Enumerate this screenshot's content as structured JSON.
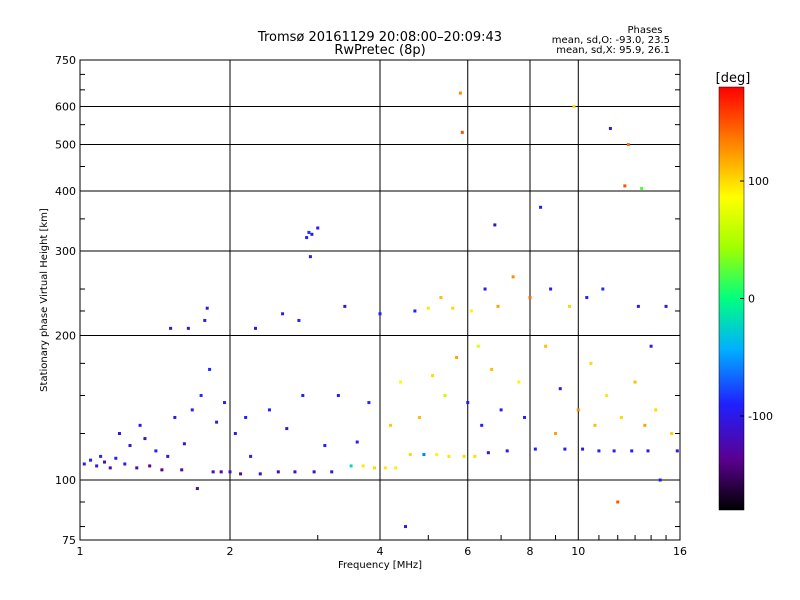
{
  "chart_data": {
    "type": "scatter",
    "title": "Tromsø 20161129 20:08:00–20:09:43",
    "subtitle": "RwPretec (8p)",
    "xlabel": "Frequency [MHz]",
    "ylabel": "Stationary phase Virtual Height [km]",
    "x_scale": "log",
    "y_scale": "log",
    "xlim": [
      1,
      16
    ],
    "ylim": [
      75,
      750
    ],
    "x_ticks": [
      1,
      2,
      4,
      6,
      8,
      10,
      16
    ],
    "x_tick_labels": [
      "1",
      "2",
      "4",
      "6",
      "8",
      "10",
      "16"
    ],
    "y_ticks": [
      75,
      100,
      200,
      300,
      400,
      500,
      600,
      750
    ],
    "y_tick_labels": [
      "75",
      "100",
      "200",
      "300",
      "400",
      "500",
      "600",
      "750"
    ],
    "grid": true,
    "stats": {
      "heading": "Phases",
      "line_o": "mean, sd,O:  -93.0, 23.5",
      "line_x": "mean, sd,X:  95.9, 26.1"
    },
    "colorbar": {
      "label": "[deg]",
      "range": [
        -180,
        180
      ],
      "ticks": [
        100,
        0,
        -100
      ],
      "tick_labels": [
        "100",
        "0",
        "-100"
      ],
      "colormap": "rainbow"
    },
    "series": [
      {
        "color_variable": "phase_deg",
        "points": [
          {
            "x": 1.02,
            "y": 108,
            "c": -95
          },
          {
            "x": 1.05,
            "y": 110,
            "c": -90
          },
          {
            "x": 1.08,
            "y": 107,
            "c": -100
          },
          {
            "x": 1.1,
            "y": 112,
            "c": -88
          },
          {
            "x": 1.12,
            "y": 109,
            "c": -120
          },
          {
            "x": 1.15,
            "y": 106,
            "c": -130
          },
          {
            "x": 1.18,
            "y": 111,
            "c": -92
          },
          {
            "x": 1.2,
            "y": 125,
            "c": -110
          },
          {
            "x": 1.23,
            "y": 108,
            "c": -95
          },
          {
            "x": 1.26,
            "y": 118,
            "c": -105
          },
          {
            "x": 1.3,
            "y": 106,
            "c": -125
          },
          {
            "x": 1.32,
            "y": 130,
            "c": -100
          },
          {
            "x": 1.35,
            "y": 122,
            "c": -115
          },
          {
            "x": 1.38,
            "y": 107,
            "c": -135
          },
          {
            "x": 1.42,
            "y": 115,
            "c": -90
          },
          {
            "x": 1.46,
            "y": 105,
            "c": -140
          },
          {
            "x": 1.5,
            "y": 112,
            "c": -100
          },
          {
            "x": 1.52,
            "y": 207,
            "c": -110
          },
          {
            "x": 1.55,
            "y": 135,
            "c": -95
          },
          {
            "x": 1.6,
            "y": 105,
            "c": -130
          },
          {
            "x": 1.62,
            "y": 119,
            "c": -105
          },
          {
            "x": 1.65,
            "y": 207,
            "c": -100
          },
          {
            "x": 1.68,
            "y": 140,
            "c": -90
          },
          {
            "x": 1.72,
            "y": 96,
            "c": -120
          },
          {
            "x": 1.75,
            "y": 150,
            "c": -85
          },
          {
            "x": 1.78,
            "y": 215,
            "c": -95
          },
          {
            "x": 1.8,
            "y": 228,
            "c": -100
          },
          {
            "x": 1.82,
            "y": 170,
            "c": -88
          },
          {
            "x": 1.85,
            "y": 104,
            "c": -125
          },
          {
            "x": 1.88,
            "y": 132,
            "c": -95
          },
          {
            "x": 1.92,
            "y": 104,
            "c": -135
          },
          {
            "x": 1.95,
            "y": 145,
            "c": -90
          },
          {
            "x": 2.0,
            "y": 104,
            "c": -120
          },
          {
            "x": 2.05,
            "y": 125,
            "c": -100
          },
          {
            "x": 2.1,
            "y": 103,
            "c": -130
          },
          {
            "x": 2.15,
            "y": 135,
            "c": -90
          },
          {
            "x": 2.2,
            "y": 112,
            "c": -95
          },
          {
            "x": 2.25,
            "y": 207,
            "c": -100
          },
          {
            "x": 2.3,
            "y": 103,
            "c": -125
          },
          {
            "x": 2.4,
            "y": 140,
            "c": -92
          },
          {
            "x": 2.5,
            "y": 104,
            "c": -120
          },
          {
            "x": 2.55,
            "y": 222,
            "c": -95
          },
          {
            "x": 2.6,
            "y": 128,
            "c": -100
          },
          {
            "x": 2.7,
            "y": 104,
            "c": -118
          },
          {
            "x": 2.75,
            "y": 215,
            "c": -90
          },
          {
            "x": 2.8,
            "y": 150,
            "c": -95
          },
          {
            "x": 2.85,
            "y": 320,
            "c": -90
          },
          {
            "x": 2.88,
            "y": 328,
            "c": -85
          },
          {
            "x": 2.9,
            "y": 292,
            "c": -95
          },
          {
            "x": 2.92,
            "y": 325,
            "c": -100
          },
          {
            "x": 2.95,
            "y": 104,
            "c": -115
          },
          {
            "x": 3.0,
            "y": 335,
            "c": -90
          },
          {
            "x": 3.1,
            "y": 118,
            "c": -92
          },
          {
            "x": 3.2,
            "y": 104,
            "c": -110
          },
          {
            "x": 3.3,
            "y": 150,
            "c": -95
          },
          {
            "x": 3.4,
            "y": 230,
            "c": -100
          },
          {
            "x": 3.5,
            "y": 107,
            "c": -20
          },
          {
            "x": 3.6,
            "y": 120,
            "c": -90
          },
          {
            "x": 3.7,
            "y": 107,
            "c": 95
          },
          {
            "x": 3.8,
            "y": 145,
            "c": -88
          },
          {
            "x": 3.9,
            "y": 106,
            "c": 100
          },
          {
            "x": 4.0,
            "y": 222,
            "c": -95
          },
          {
            "x": 4.1,
            "y": 106,
            "c": 95
          },
          {
            "x": 4.2,
            "y": 130,
            "c": 105
          },
          {
            "x": 4.3,
            "y": 106,
            "c": 92
          },
          {
            "x": 4.4,
            "y": 160,
            "c": 80
          },
          {
            "x": 4.5,
            "y": 80,
            "c": -100
          },
          {
            "x": 4.6,
            "y": 113,
            "c": 100
          },
          {
            "x": 4.7,
            "y": 225,
            "c": -90
          },
          {
            "x": 4.8,
            "y": 135,
            "c": 110
          },
          {
            "x": 4.9,
            "y": 113,
            "c": -60
          },
          {
            "x": 5.0,
            "y": 228,
            "c": 95
          },
          {
            "x": 5.1,
            "y": 165,
            "c": 100
          },
          {
            "x": 5.2,
            "y": 113,
            "c": 90
          },
          {
            "x": 5.3,
            "y": 240,
            "c": 110
          },
          {
            "x": 5.4,
            "y": 150,
            "c": 60
          },
          {
            "x": 5.5,
            "y": 112,
            "c": 95
          },
          {
            "x": 5.6,
            "y": 228,
            "c": 100
          },
          {
            "x": 5.7,
            "y": 180,
            "c": 120
          },
          {
            "x": 5.8,
            "y": 640,
            "c": 130
          },
          {
            "x": 5.85,
            "y": 530,
            "c": 150
          },
          {
            "x": 5.9,
            "y": 112,
            "c": 100
          },
          {
            "x": 6.0,
            "y": 145,
            "c": -95
          },
          {
            "x": 6.1,
            "y": 225,
            "c": 90
          },
          {
            "x": 6.2,
            "y": 112,
            "c": 98
          },
          {
            "x": 6.3,
            "y": 190,
            "c": 70
          },
          {
            "x": 6.4,
            "y": 130,
            "c": -90
          },
          {
            "x": 6.5,
            "y": 250,
            "c": -95
          },
          {
            "x": 6.6,
            "y": 114,
            "c": -100
          },
          {
            "x": 6.7,
            "y": 170,
            "c": 110
          },
          {
            "x": 6.8,
            "y": 340,
            "c": -110
          },
          {
            "x": 6.9,
            "y": 230,
            "c": 120
          },
          {
            "x": 7.0,
            "y": 140,
            "c": -95
          },
          {
            "x": 7.2,
            "y": 115,
            "c": -100
          },
          {
            "x": 7.4,
            "y": 265,
            "c": 130
          },
          {
            "x": 7.6,
            "y": 160,
            "c": 90
          },
          {
            "x": 7.8,
            "y": 135,
            "c": -90
          },
          {
            "x": 8.0,
            "y": 240,
            "c": 140
          },
          {
            "x": 8.2,
            "y": 116,
            "c": -95
          },
          {
            "x": 8.4,
            "y": 370,
            "c": -90
          },
          {
            "x": 8.6,
            "y": 190,
            "c": 110
          },
          {
            "x": 8.8,
            "y": 250,
            "c": -95
          },
          {
            "x": 9.0,
            "y": 125,
            "c": 120
          },
          {
            "x": 9.2,
            "y": 155,
            "c": -100
          },
          {
            "x": 9.4,
            "y": 116,
            "c": -95
          },
          {
            "x": 9.6,
            "y": 230,
            "c": 100
          },
          {
            "x": 9.8,
            "y": 600,
            "c": 100
          },
          {
            "x": 10.0,
            "y": 140,
            "c": 130
          },
          {
            "x": 10.2,
            "y": 116,
            "c": -100
          },
          {
            "x": 10.4,
            "y": 240,
            "c": -90
          },
          {
            "x": 10.6,
            "y": 175,
            "c": 100
          },
          {
            "x": 10.8,
            "y": 130,
            "c": 110
          },
          {
            "x": 11.0,
            "y": 115,
            "c": -95
          },
          {
            "x": 11.2,
            "y": 250,
            "c": -85
          },
          {
            "x": 11.4,
            "y": 150,
            "c": 95
          },
          {
            "x": 11.6,
            "y": 540,
            "c": -100
          },
          {
            "x": 11.8,
            "y": 115,
            "c": -90
          },
          {
            "x": 12.0,
            "y": 90,
            "c": 150
          },
          {
            "x": 12.2,
            "y": 135,
            "c": 100
          },
          {
            "x": 12.4,
            "y": 410,
            "c": 150
          },
          {
            "x": 12.6,
            "y": 500,
            "c": 140
          },
          {
            "x": 12.8,
            "y": 115,
            "c": -95
          },
          {
            "x": 13.0,
            "y": 160,
            "c": 110
          },
          {
            "x": 13.2,
            "y": 230,
            "c": -90
          },
          {
            "x": 13.4,
            "y": 405,
            "c": 20
          },
          {
            "x": 13.6,
            "y": 130,
            "c": 120
          },
          {
            "x": 13.8,
            "y": 115,
            "c": -100
          },
          {
            "x": 14.0,
            "y": 190,
            "c": -95
          },
          {
            "x": 14.3,
            "y": 140,
            "c": 100
          },
          {
            "x": 14.6,
            "y": 100,
            "c": -90
          },
          {
            "x": 15.0,
            "y": 230,
            "c": -95
          },
          {
            "x": 15.4,
            "y": 125,
            "c": 105
          },
          {
            "x": 15.8,
            "y": 115,
            "c": -100
          }
        ]
      }
    ]
  }
}
